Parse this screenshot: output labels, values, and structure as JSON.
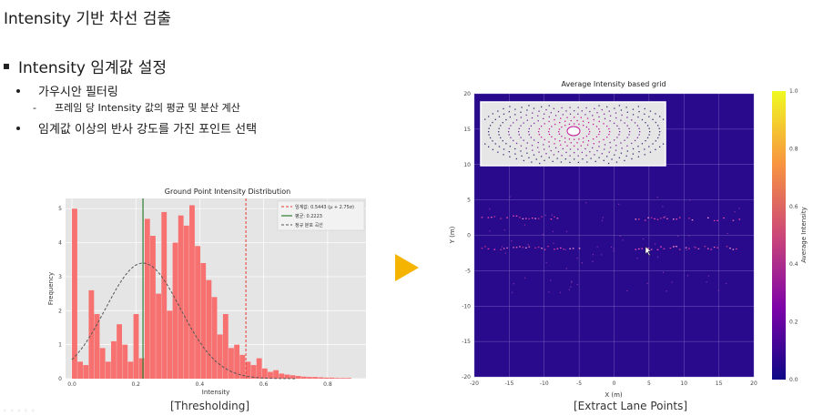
{
  "slide": {
    "title": "Intensity 기반 차선 검출",
    "bullet1": "Intensity 임계값 설정",
    "bullet2a": "가우시안 필터링",
    "bullet3": "프레임 당 Intensity 값의 평균 및 분산 계산",
    "bullet2b": "임계값 이상의 반사 강도를 가진 포인트 선택",
    "caption_left": "[Thresholding]",
    "caption_right": "[Extract Lane Points]",
    "arrow_color": "#f5b400"
  },
  "chart_data": [
    {
      "type": "bar",
      "title": "Ground Point Intensity Distribution",
      "xlabel": "Intensity",
      "ylabel": "Frequency",
      "xlim": [
        -0.02,
        0.92
      ],
      "ylim": [
        0,
        5.3
      ],
      "xticks": [
        "0.0",
        "0.2",
        "0.4",
        "0.6",
        "0.8"
      ],
      "yticks": [
        "0",
        "1",
        "2",
        "3",
        "4",
        "5"
      ],
      "bin_start": 0.0,
      "bin_width": 0.0175,
      "values": [
        5.0,
        0.5,
        0.4,
        2.6,
        1.9,
        0.9,
        0.5,
        1.1,
        1.6,
        1.0,
        0.5,
        1.9,
        0.6,
        4.7,
        4.2,
        2.5,
        4.9,
        2.0,
        4.0,
        4.8,
        4.5,
        5.1,
        3.9,
        3.4,
        2.9,
        2.4,
        1.3,
        1.9,
        0.9,
        1.0,
        0.7,
        0.5,
        0.4,
        0.6,
        0.3,
        0.2,
        0.25,
        0.15,
        0.12,
        0.1,
        0.08,
        0.06,
        0.05,
        0.05,
        0.04,
        0.03,
        0.03,
        0.02,
        0.02,
        0.02
      ],
      "bar_color": "#f87171",
      "gaussian": {
        "mean": 0.2223,
        "std": 0.1171,
        "peak": 3.4
      },
      "threshold": 0.5443,
      "mean_line": 0.2223,
      "legend": {
        "position": "top-right",
        "entries": [
          {
            "label": "임계값: 0.5443 (μ + 2.75σ)",
            "color": "#e53935",
            "style": "dashed"
          },
          {
            "label": "평균: 0.2223",
            "color": "#2e7d32",
            "style": "solid"
          },
          {
            "label": "정규 분포 곡선",
            "color": "#555555",
            "style": "dashed"
          }
        ]
      },
      "grid": true
    },
    {
      "type": "heatmap",
      "title": "Average Intensity based grid",
      "xlabel": "X (m)",
      "ylabel": "Y (m)",
      "xlim": [
        -20,
        20
      ],
      "ylim": [
        -20,
        20
      ],
      "xticks": [
        "-20",
        "-15",
        "-10",
        "-5",
        "0",
        "5",
        "10",
        "15",
        "20"
      ],
      "yticks": [
        "20",
        "15",
        "10",
        "5",
        "0",
        "-5",
        "-10",
        "-15",
        "-20"
      ],
      "colorbar_label": "Average Intensity",
      "colorbar_ticks": [
        "1.0",
        "0.8",
        "0.6",
        "0.4",
        "0.2",
        "0.0"
      ],
      "background_color": "#2a0a8c",
      "lane_rows": [
        {
          "y": 2.5,
          "x_from": -19,
          "x_to": -8
        },
        {
          "y": 2.3,
          "x_from": 3,
          "x_to": 18
        },
        {
          "y": -1.8,
          "x_from": -19,
          "x_to": -5
        },
        {
          "y": -1.8,
          "x_from": 3,
          "x_to": 18
        }
      ],
      "inset": true,
      "grid": true
    }
  ]
}
